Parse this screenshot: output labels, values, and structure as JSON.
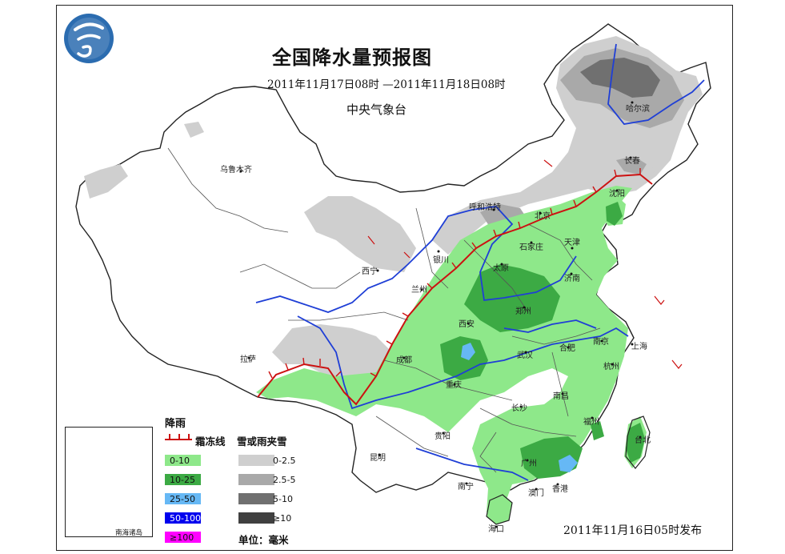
{
  "title": "全国降水量预报图",
  "period": "2011年11月17日08时 —2011年11月18日08时",
  "agency": "中央气象台",
  "issued": "2011年11月16日05时发布",
  "logo": {
    "icon": "cma-logo-icon",
    "color": "#2b6cb0"
  },
  "cities": [
    {
      "name": "乌鲁木齐"
    },
    {
      "name": "哈尔滨"
    },
    {
      "name": "长春"
    },
    {
      "name": "沈阳"
    },
    {
      "name": "呼和浩特"
    },
    {
      "name": "北京"
    },
    {
      "name": "天津"
    },
    {
      "name": "石家庄"
    },
    {
      "name": "银川"
    },
    {
      "name": "太原"
    },
    {
      "name": "济南"
    },
    {
      "name": "西宁"
    },
    {
      "name": "兰州"
    },
    {
      "name": "郑州"
    },
    {
      "name": "西安"
    },
    {
      "name": "合肥"
    },
    {
      "name": "南京"
    },
    {
      "name": "上海"
    },
    {
      "name": "拉萨"
    },
    {
      "name": "成都"
    },
    {
      "name": "武汉"
    },
    {
      "name": "杭州"
    },
    {
      "name": "重庆"
    },
    {
      "name": "南昌"
    },
    {
      "name": "长沙"
    },
    {
      "name": "福州"
    },
    {
      "name": "台北"
    },
    {
      "name": "贵阳"
    },
    {
      "name": "昆明"
    },
    {
      "name": "广州"
    },
    {
      "name": "南宁"
    },
    {
      "name": "澳门"
    },
    {
      "name": "香港"
    },
    {
      "name": "海口"
    }
  ],
  "legend": {
    "rain_heading": "降雨",
    "freeze_line_label": "霜冻线",
    "snow_heading": "雪或雨夹雪",
    "rain_classes": [
      {
        "label": "0-10",
        "color": "#8ee88a"
      },
      {
        "label": "10-25",
        "color": "#3caa44"
      },
      {
        "label": "25-50",
        "color": "#66b8f5"
      },
      {
        "label": "50-100",
        "color": "#0000ee"
      },
      {
        "label": "≥100",
        "color": "#ff00ff"
      }
    ],
    "snow_classes": [
      {
        "label": "0-2.5",
        "color": "#cfcfcf"
      },
      {
        "label": "2.5-5",
        "color": "#a9a9a9"
      },
      {
        "label": "5-10",
        "color": "#707070"
      },
      {
        "label": "≥10",
        "color": "#404040"
      }
    ],
    "unit": "单位：毫米"
  },
  "inset": {
    "label": "南海诸岛"
  },
  "colors": {
    "freeze_line": "#cc1111",
    "river": "#1f3fd6",
    "border": "#222222"
  }
}
